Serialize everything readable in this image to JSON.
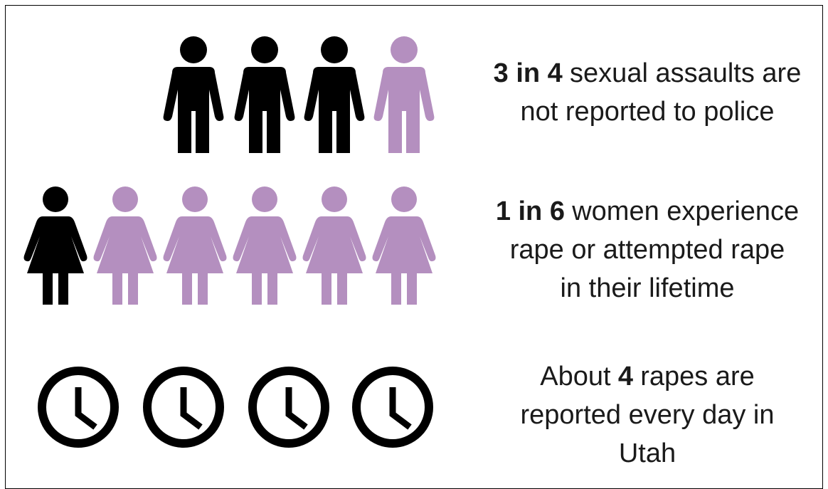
{
  "rows": [
    {
      "lines": [
        [
          {
            "text": "3 in 4",
            "bold": true
          },
          {
            "text": "sexual assaults are"
          }
        ],
        [
          {
            "text": "not reported to police"
          }
        ]
      ]
    },
    {
      "lines": [
        [
          {
            "text": "1 in 6",
            "bold": true
          },
          {
            "text": "women experience"
          }
        ],
        [
          {
            "text": "rape or attempted rape"
          }
        ],
        [
          {
            "text": "in their lifetime"
          }
        ]
      ]
    },
    {
      "lines": [
        [
          {
            "text": "About"
          },
          {
            "text": "4",
            "bold": true
          },
          {
            "text": "rapes are"
          }
        ],
        [
          {
            "text": "reported every day in"
          }
        ],
        [
          {
            "text": "Utah"
          }
        ]
      ]
    }
  ]
}
